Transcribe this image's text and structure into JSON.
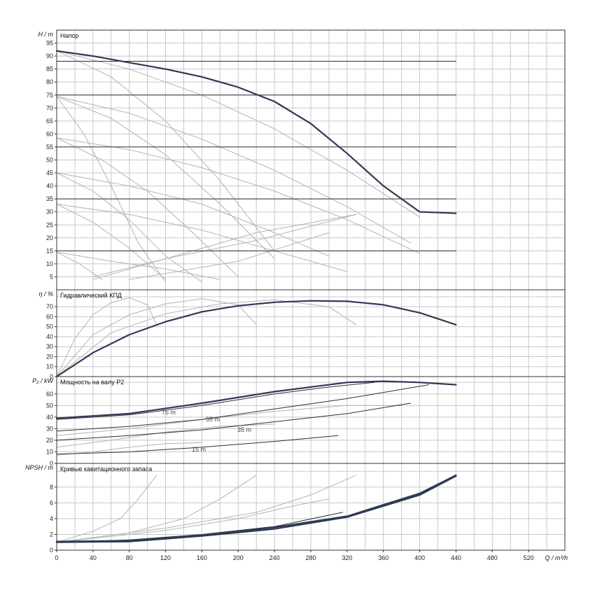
{
  "chart_data": [
    {
      "type": "line",
      "title": "Напор",
      "ylabel": "H / m",
      "ylim": [
        0,
        100
      ],
      "yticks": [
        5,
        10,
        15,
        20,
        25,
        30,
        35,
        40,
        45,
        50,
        55,
        60,
        65,
        70,
        75,
        80,
        85,
        90,
        95
      ],
      "xlim": [
        0,
        560
      ],
      "grid": true,
      "series": [
        {
          "role": "max",
          "x": [
            0,
            40,
            80,
            120,
            160,
            200,
            240,
            280,
            320,
            360,
            400,
            440
          ],
          "y": [
            92,
            90,
            87.5,
            85,
            82,
            78,
            72.5,
            64,
            52.5,
            40,
            30,
            29.5
          ]
        },
        {
          "role": "min",
          "x": [
            0,
            80,
            160,
            200,
            240,
            280,
            320,
            360,
            400,
            440
          ],
          "y": [
            4,
            4,
            4,
            5.2,
            7.5,
            10.3,
            14,
            18,
            23.5,
            29.5
          ]
        },
        {
          "role": "duty",
          "x": [
            0,
            440
          ],
          "y": [
            88,
            88
          ]
        },
        {
          "role": "duty",
          "x": [
            0,
            440
          ],
          "y": [
            75,
            75
          ]
        },
        {
          "role": "duty",
          "x": [
            0,
            440
          ],
          "y": [
            55,
            55
          ]
        },
        {
          "role": "duty",
          "x": [
            0,
            440
          ],
          "y": [
            35,
            35
          ]
        },
        {
          "role": "duty",
          "x": [
            0,
            440
          ],
          "y": [
            15,
            15
          ]
        },
        {
          "role": "family",
          "x": [
            0,
            80,
            160,
            240,
            320,
            400
          ],
          "y": [
            92,
            85,
            75,
            62,
            46,
            28
          ]
        },
        {
          "role": "family",
          "x": [
            0,
            60,
            120,
            180,
            240
          ],
          "y": [
            92,
            82,
            65,
            42,
            15
          ]
        },
        {
          "role": "family",
          "x": [
            0,
            80,
            160,
            240,
            320,
            390
          ],
          "y": [
            74.5,
            68,
            58,
            46,
            32,
            18
          ]
        },
        {
          "role": "family",
          "x": [
            0,
            60,
            120,
            180,
            240
          ],
          "y": [
            74.5,
            66,
            52,
            33,
            12
          ]
        },
        {
          "role": "family",
          "x": [
            0,
            30,
            60,
            90,
            120
          ],
          "y": [
            74.5,
            60,
            40,
            18,
            3
          ]
        },
        {
          "role": "family",
          "x": [
            0,
            80,
            160,
            240,
            320,
            400
          ],
          "y": [
            58.5,
            54,
            47,
            38,
            27,
            14
          ]
        },
        {
          "role": "family",
          "x": [
            0,
            50,
            100,
            150,
            200
          ],
          "y": [
            58.5,
            50,
            38,
            22,
            5
          ]
        },
        {
          "role": "family",
          "x": [
            0,
            80,
            160,
            240,
            300
          ],
          "y": [
            45,
            40,
            33,
            22,
            13
          ]
        },
        {
          "role": "family",
          "x": [
            0,
            40,
            80,
            120,
            160
          ],
          "y": [
            45,
            38,
            27,
            13,
            3
          ]
        },
        {
          "role": "family",
          "x": [
            0,
            80,
            160,
            240,
            320
          ],
          "y": [
            33,
            29,
            23,
            15,
            7
          ]
        },
        {
          "role": "family",
          "x": [
            0,
            40,
            80,
            120
          ],
          "y": [
            33,
            26,
            16,
            4
          ]
        },
        {
          "role": "family",
          "x": [
            0,
            60,
            120,
            180
          ],
          "y": [
            14.5,
            11,
            8,
            4
          ]
        },
        {
          "role": "family",
          "x": [
            0,
            25,
            50
          ],
          "y": [
            14.5,
            10,
            4
          ]
        },
        {
          "role": "family",
          "x": [
            40,
            120,
            220,
            330
          ],
          "y": [
            5,
            12,
            19,
            29
          ]
        },
        {
          "role": "family",
          "x": [
            80,
            200,
            300
          ],
          "y": [
            4,
            11,
            22
          ]
        },
        {
          "role": "family",
          "x": [
            40,
            140,
            220,
            330
          ],
          "y": [
            4,
            14,
            22,
            29
          ]
        }
      ]
    },
    {
      "type": "line",
      "title": "Гидравлический КПД",
      "ylabel": "η / %",
      "ylim": [
        0,
        87
      ],
      "yticks": [
        0,
        10,
        20,
        30,
        40,
        50,
        60,
        70
      ],
      "xlim": [
        0,
        560
      ],
      "grid": true,
      "series": [
        {
          "role": "max",
          "x": [
            0,
            40,
            80,
            120,
            160,
            200,
            240,
            280,
            320,
            360,
            400,
            440
          ],
          "y": [
            0,
            24,
            42,
            55,
            65,
            71,
            74.5,
            76,
            75.5,
            72,
            64,
            52
          ]
        },
        {
          "role": "family",
          "x": [
            0,
            20,
            40,
            60,
            80,
            100,
            110
          ],
          "y": [
            0,
            38,
            62,
            74,
            79,
            72,
            52
          ]
        },
        {
          "role": "family",
          "x": [
            0,
            40,
            80,
            120,
            160,
            200,
            220
          ],
          "y": [
            0,
            42,
            62,
            73,
            78,
            72,
            52
          ]
        },
        {
          "role": "family",
          "x": [
            0,
            60,
            120,
            180,
            240,
            300,
            330
          ],
          "y": [
            0,
            44,
            63,
            73,
            77,
            70,
            52
          ]
        }
      ]
    },
    {
      "type": "line",
      "title": "Мощность на валу P2",
      "ylabel": "P₂ / kW",
      "ylim": [
        0,
        75
      ],
      "yticks": [
        0,
        10,
        20,
        30,
        40,
        50,
        60
      ],
      "xlim": [
        0,
        560
      ],
      "grid": true,
      "annotations": [
        "75 m",
        "55 m",
        "35 m",
        "15 m"
      ],
      "series": [
        {
          "role": "max",
          "x": [
            0,
            80,
            160,
            240,
            320,
            360,
            400,
            440
          ],
          "y": [
            39,
            43,
            52,
            62,
            70,
            71,
            70,
            68
          ]
        },
        {
          "role": "duty",
          "x": [
            0,
            80,
            160,
            240,
            300,
            350
          ],
          "y": [
            38,
            42,
            50,
            60,
            66,
            70
          ]
        },
        {
          "role": "duty",
          "x": [
            0,
            80,
            160,
            240,
            320,
            410
          ],
          "y": [
            28,
            32,
            38,
            47,
            56,
            68
          ]
        },
        {
          "role": "duty",
          "x": [
            0,
            80,
            160,
            240,
            320,
            390
          ],
          "y": [
            20,
            24,
            29,
            36,
            43,
            52
          ]
        },
        {
          "role": "duty",
          "x": [
            0,
            80,
            160,
            240,
            310
          ],
          "y": [
            8,
            10,
            14,
            19,
            24
          ]
        },
        {
          "role": "family",
          "x": [
            0,
            80,
            160,
            240,
            320,
            380
          ],
          "y": [
            24,
            30,
            38,
            45,
            50,
            50
          ]
        },
        {
          "role": "family",
          "x": [
            0,
            60,
            120,
            180,
            240
          ],
          "y": [
            14,
            20,
            27,
            32,
            34
          ]
        },
        {
          "role": "family",
          "x": [
            0,
            40,
            80,
            120,
            160
          ],
          "y": [
            7,
            10,
            14,
            17,
            18
          ]
        }
      ]
    },
    {
      "type": "line",
      "title": "Кривые кавитационного запаса",
      "ylabel": "NPSH / m",
      "ylim": [
        0,
        11
      ],
      "yticks": [
        0,
        2,
        4,
        6,
        8
      ],
      "xlabel": "Q / m³/h",
      "xlim": [
        0,
        560
      ],
      "xticks": [
        0,
        40,
        80,
        120,
        160,
        200,
        240,
        280,
        320,
        360,
        400,
        440,
        480,
        520
      ],
      "grid": true,
      "series": [
        {
          "role": "max",
          "x": [
            0,
            80,
            160,
            240,
            320,
            400,
            440
          ],
          "y": [
            1.1,
            1.2,
            1.9,
            2.9,
            4.3,
            7.2,
            9.5
          ]
        },
        {
          "role": "max",
          "x": [
            0,
            80,
            160,
            240,
            320,
            400,
            440
          ],
          "y": [
            1,
            1.1,
            1.8,
            2.7,
            4.2,
            7,
            9.4
          ]
        },
        {
          "role": "duty",
          "x": [
            0,
            80,
            160,
            240,
            315
          ],
          "y": [
            1,
            1.3,
            2,
            3,
            4.8
          ]
        },
        {
          "role": "family",
          "x": [
            0,
            40,
            70,
            90,
            110
          ],
          "y": [
            1,
            2.4,
            4,
            6.5,
            9.5
          ]
        },
        {
          "role": "family",
          "x": [
            0,
            80,
            140,
            180,
            220
          ],
          "y": [
            1,
            2.2,
            4,
            6.5,
            9.5
          ]
        },
        {
          "role": "family",
          "x": [
            0,
            120,
            220,
            280,
            330
          ],
          "y": [
            1,
            2.8,
            4.8,
            7,
            9.5
          ]
        },
        {
          "role": "family",
          "x": [
            0,
            120,
            200,
            260,
            300
          ],
          "y": [
            1,
            2.5,
            4,
            5.6,
            6.5
          ]
        }
      ]
    }
  ]
}
